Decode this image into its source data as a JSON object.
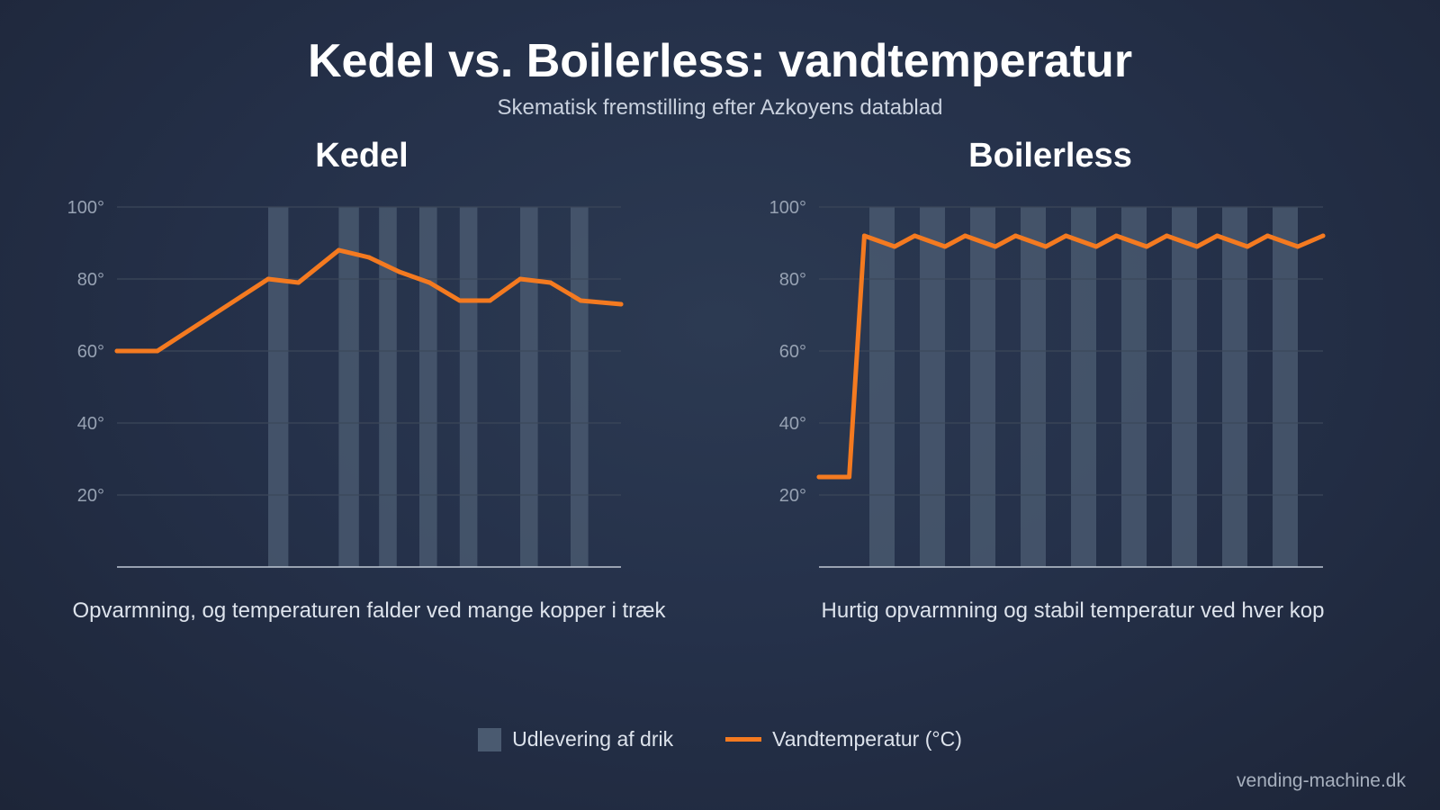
{
  "title": "Kedel vs. Boilerless: vandtemperatur",
  "subtitle": "Skematisk fremstilling efter Azkoyens datablad",
  "legend": {
    "dispense_label": "Udlevering af drik",
    "temp_label": "Vandtemperatur (°C)"
  },
  "footer": "vending-machine.dk",
  "colors": {
    "line": "#f47a20",
    "dispense_band": "#4a5a70",
    "grid": "#3c475a",
    "axis": "#c0c8d4",
    "tick_text": "#97a2b3"
  },
  "chart_data": [
    {
      "type": "line",
      "title": "Kedel",
      "caption": "Opvarmning, og temperaturen falder ved mange kopper i træk",
      "xlim": [
        0,
        100
      ],
      "ylim": [
        0,
        100
      ],
      "yticks": [
        20,
        40,
        60,
        80,
        100
      ],
      "ytick_labels": [
        "20°",
        "40°",
        "60°",
        "80°",
        "100°"
      ],
      "grid": true,
      "series": [
        {
          "x": [
            0,
            8,
            30,
            36,
            44,
            50,
            56,
            62,
            68,
            74,
            80,
            86,
            92,
            100
          ],
          "y": [
            60,
            60,
            80,
            79,
            88,
            86,
            82,
            79,
            74,
            74,
            80,
            79,
            74,
            73
          ]
        }
      ],
      "dispense_bands": [
        [
          30,
          34
        ],
        [
          44,
          48
        ],
        [
          52,
          55.5
        ],
        [
          60,
          63.5
        ],
        [
          68,
          71.5
        ],
        [
          80,
          83.5
        ],
        [
          90,
          93.5
        ]
      ]
    },
    {
      "type": "line",
      "title": "Boilerless",
      "caption": "Hurtig opvarmning og stabil temperatur ved hver kop",
      "xlim": [
        0,
        100
      ],
      "ylim": [
        0,
        100
      ],
      "yticks": [
        20,
        40,
        60,
        80,
        100
      ],
      "ytick_labels": [
        "20°",
        "40°",
        "60°",
        "80°",
        "100°"
      ],
      "grid": true,
      "series": [
        {
          "x": [
            0,
            6,
            9,
            15,
            19,
            25,
            29,
            35,
            39,
            45,
            49,
            55,
            59,
            65,
            69,
            75,
            79,
            85,
            89,
            95,
            100
          ],
          "y": [
            25,
            25,
            92,
            89,
            92,
            89,
            92,
            89,
            92,
            89,
            92,
            89,
            92,
            89,
            92,
            89,
            92,
            89,
            92,
            89,
            92
          ]
        }
      ],
      "dispense_bands": [
        [
          10,
          15
        ],
        [
          20,
          25
        ],
        [
          30,
          35
        ],
        [
          40,
          45
        ],
        [
          50,
          55
        ],
        [
          60,
          65
        ],
        [
          70,
          75
        ],
        [
          80,
          85
        ],
        [
          90,
          95
        ]
      ]
    }
  ]
}
